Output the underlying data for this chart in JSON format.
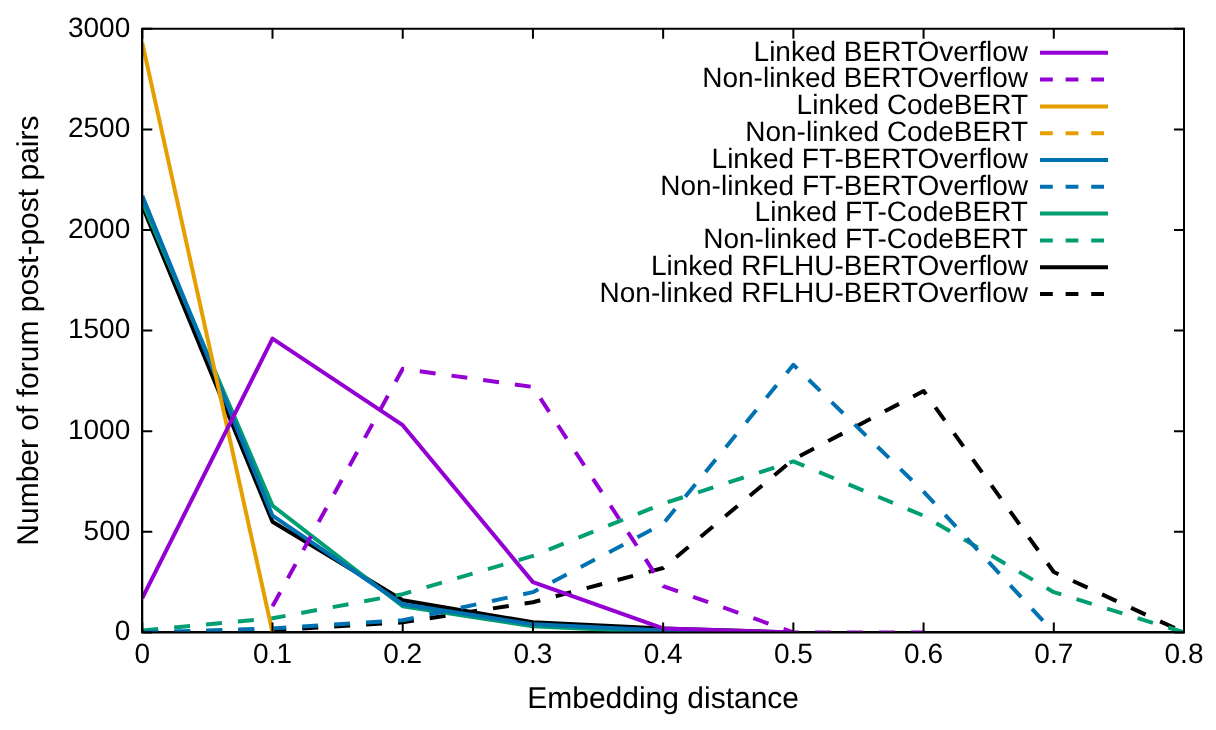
{
  "chart_data": {
    "type": "line",
    "xlabel": "Embedding distance",
    "ylabel": "Number of forum post-post pairs",
    "x": [
      0,
      0.1,
      0.2,
      0.3,
      0.4,
      0.5,
      0.6,
      0.7,
      0.8
    ],
    "xlim": [
      0,
      0.8
    ],
    "xticks": [
      0,
      0.1,
      0.2,
      0.3,
      0.4,
      0.5,
      0.6,
      0.7,
      0.8
    ],
    "ylim": [
      0,
      3000
    ],
    "yticks": [
      0,
      500,
      1000,
      1500,
      2000,
      2500,
      3000
    ],
    "grid": false,
    "legend": "top right",
    "marker": "none",
    "series": [
      {
        "name": "Linked BERTOverflow",
        "color": "#9400d3",
        "line_style": "solid",
        "values": [
          170,
          1460,
          1030,
          250,
          20,
          0,
          null,
          null,
          null
        ]
      },
      {
        "name": "Non-linked BERTOverflow",
        "color": "#9400d3",
        "line_style": "dashed",
        "values": [
          null,
          130,
          1310,
          1220,
          230,
          0,
          0,
          null,
          null
        ]
      },
      {
        "name": "Linked CodeBERT",
        "color": "#e69f00",
        "line_style": "solid",
        "values": [
          2930,
          0,
          null,
          null,
          null,
          null,
          null,
          null,
          null
        ]
      },
      {
        "name": "Non-linked CodeBERT",
        "color": "#e69f00",
        "line_style": "dashed",
        "values": [
          null,
          null,
          null,
          null,
          null,
          null,
          null,
          null,
          null
        ]
      },
      {
        "name": "Linked FT-BERTOverflow",
        "color": "#0072b2",
        "line_style": "solid",
        "values": [
          2170,
          580,
          140,
          40,
          10,
          0,
          null,
          null,
          null
        ]
      },
      {
        "name": "Non-linked FT-BERTOverflow",
        "color": "#0072b2",
        "line_style": "dashed",
        "values": [
          0,
          20,
          60,
          200,
          540,
          1330,
          700,
          0,
          null
        ]
      },
      {
        "name": "Linked FT-CodeBERT",
        "color": "#009e73",
        "line_style": "solid",
        "values": [
          2140,
          630,
          130,
          30,
          0,
          0,
          null,
          null,
          null
        ]
      },
      {
        "name": "Non-linked FT-CodeBERT",
        "color": "#009e73",
        "line_style": "dashed",
        "values": [
          10,
          70,
          190,
          380,
          640,
          850,
          580,
          200,
          0
        ]
      },
      {
        "name": "Linked RFLHU-BERTOverflow",
        "color": "#000000",
        "line_style": "solid",
        "values": [
          2120,
          550,
          160,
          50,
          20,
          0,
          null,
          null,
          null
        ]
      },
      {
        "name": "Non-linked RFLHU-BERTOverflow",
        "color": "#000000",
        "line_style": "dashed",
        "values": [
          0,
          10,
          50,
          150,
          320,
          860,
          1200,
          300,
          0
        ]
      }
    ]
  }
}
